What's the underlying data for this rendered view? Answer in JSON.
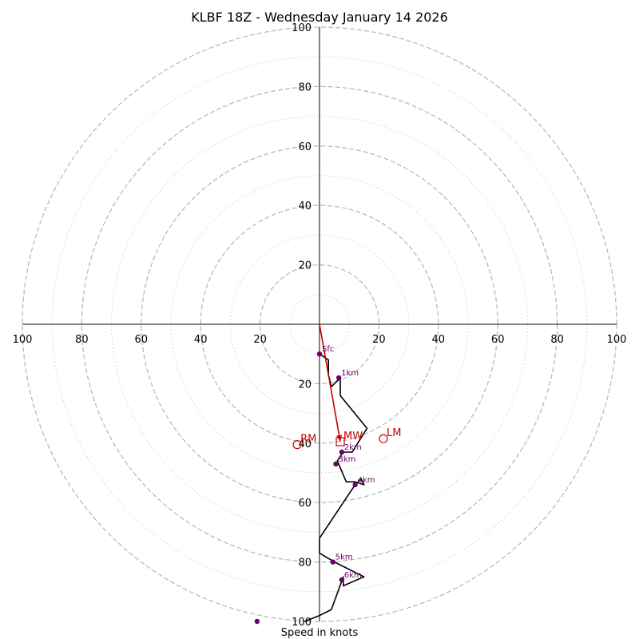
{
  "chart_data": {
    "type": "hodograph",
    "title": "KLBF 18Z - Wednesday January 14 2026",
    "xlabel": "Speed in knots",
    "units": "knots",
    "rlim": [
      0,
      100
    ],
    "major_rings": [
      20,
      40,
      60,
      80,
      100
    ],
    "minor_rings": [
      10,
      30,
      50,
      70,
      90
    ],
    "axis_tick_values": [
      20,
      40,
      60,
      80,
      100
    ],
    "axis_tick_labels": [
      "20",
      "40",
      "60",
      "80",
      "100"
    ],
    "colors": {
      "axis": "#000000",
      "rings": "#b5b5b5",
      "hodo_line": "#000000",
      "height_points": "#6b006b",
      "motion": "#cc0000"
    },
    "hodograph": {
      "u": [
        0,
        3,
        3,
        4,
        7,
        7,
        16,
        11,
        8,
        6,
        9,
        12,
        15,
        14,
        12,
        0,
        0,
        5,
        15,
        8,
        8,
        4,
        0,
        -5
      ],
      "v": [
        -10,
        -12,
        -17,
        -21,
        -18,
        -24,
        -35,
        -43,
        -43,
        -46,
        -53,
        -53,
        -54,
        -52,
        -54,
        -72,
        -77,
        -80,
        -85,
        -88,
        -85,
        -96,
        -98,
        -100
      ]
    },
    "height_markers": [
      {
        "label": "Sfc",
        "u": 0,
        "v": -10
      },
      {
        "label": "1km",
        "u": 6.5,
        "v": -18
      },
      {
        "label": "2km",
        "u": 7.5,
        "v": -43
      },
      {
        "label": "3km",
        "u": 5.5,
        "v": -47
      },
      {
        "label": "4km",
        "u": 12,
        "v": -54
      },
      {
        "label": "5km",
        "u": 4.5,
        "v": -80
      },
      {
        "label": "6km",
        "u": 7.5,
        "v": -86
      },
      {
        "label": "",
        "u": -21,
        "v": -100
      }
    ],
    "storm_motion": [
      {
        "label": "RM",
        "u": -7.5,
        "v": -40.5,
        "marker": "circle"
      },
      {
        "label": "LM",
        "u": 21.5,
        "v": -38.5,
        "marker": "circle"
      },
      {
        "label": "MW",
        "u": 7,
        "v": -39.5,
        "marker": "square"
      }
    ],
    "shear_vector": {
      "u0": 0,
      "v0": 0,
      "u1": 7,
      "v1": -39.5
    }
  }
}
